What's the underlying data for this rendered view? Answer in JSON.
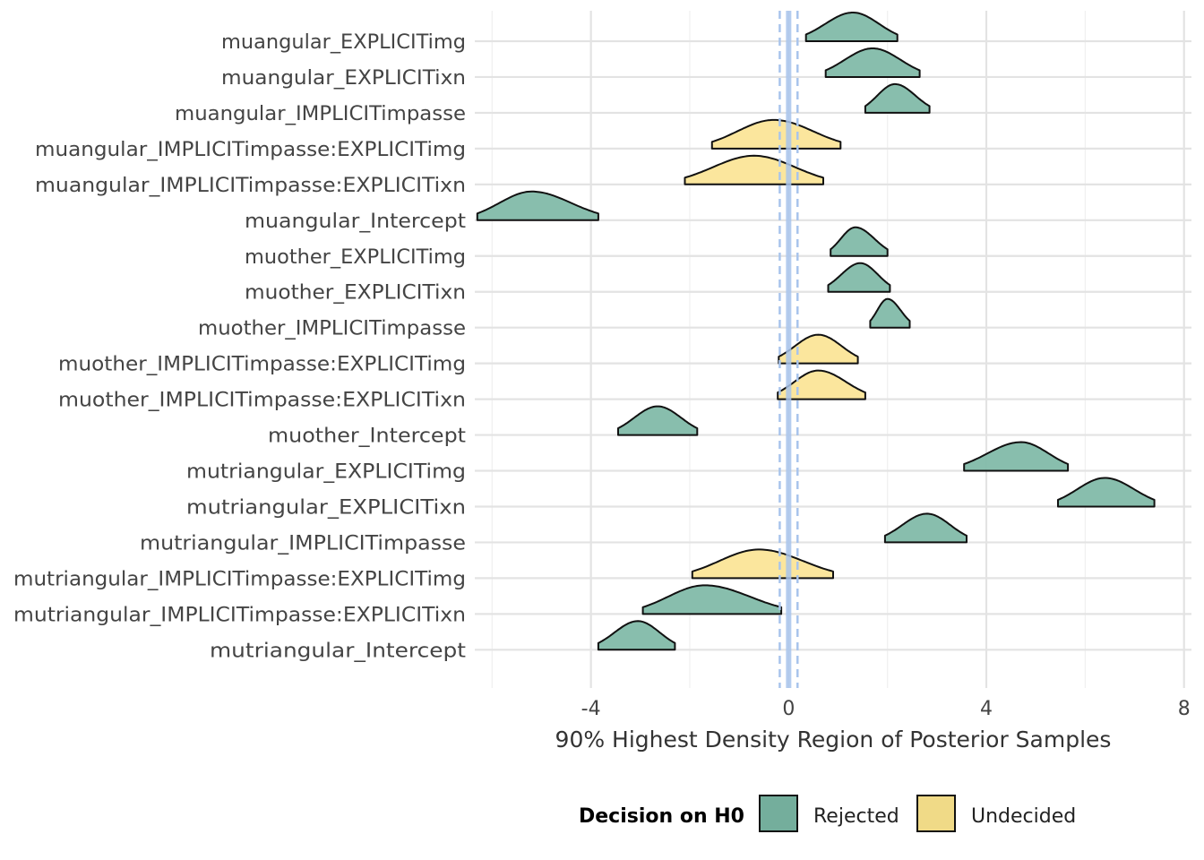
{
  "chart_data": {
    "type": "ridgeline",
    "xlabel": "90% Highest Density Region of Posterior Samples",
    "xlim": [
      -6.35,
      8.15
    ],
    "xticks": [
      -4,
      0,
      4,
      8
    ],
    "xtick_labels": [
      "-4",
      "0",
      "4",
      "8"
    ],
    "grid": true,
    "reference_line": {
      "x": 0,
      "rope": [
        -0.18,
        0.18
      ],
      "color": "#a8c4ec"
    },
    "legend": {
      "title": "Decision on H0",
      "position": "bottom",
      "entries": [
        {
          "label": "Rejected",
          "color": "#74ae9c"
        },
        {
          "label": "Undecided",
          "color": "#f0da87"
        }
      ]
    },
    "fill_colors": {
      "Rejected": "#82bba9",
      "Undecided": "#fbe598"
    },
    "parameters": [
      {
        "name": "muangular_EXPLICITimg",
        "decision": "Rejected",
        "hdi": [
          0.35,
          2.2
        ],
        "mode": 1.3
      },
      {
        "name": "muangular_EXPLICITixn",
        "decision": "Rejected",
        "hdi": [
          0.75,
          2.65
        ],
        "mode": 1.7
      },
      {
        "name": "muangular_IMPLICITimpasse",
        "decision": "Rejected",
        "hdi": [
          1.55,
          2.85
        ],
        "mode": 2.15
      },
      {
        "name": "muangular_IMPLICITimpasse:EXPLICITimg",
        "decision": "Undecided",
        "hdi": [
          -1.55,
          1.05
        ],
        "mode": -0.3
      },
      {
        "name": "muangular_IMPLICITimpasse:EXPLICITixn",
        "decision": "Undecided",
        "hdi": [
          -2.1,
          0.7
        ],
        "mode": -0.7
      },
      {
        "name": "muangular_Intercept",
        "decision": "Rejected",
        "hdi": [
          -6.3,
          -3.85
        ],
        "mode": -5.2
      },
      {
        "name": "muother_EXPLICITimg",
        "decision": "Rejected",
        "hdi": [
          0.85,
          2.0
        ],
        "mode": 1.35
      },
      {
        "name": "muother_EXPLICITixn",
        "decision": "Rejected",
        "hdi": [
          0.8,
          2.05
        ],
        "mode": 1.45
      },
      {
        "name": "muother_IMPLICITimpasse",
        "decision": "Rejected",
        "hdi": [
          1.65,
          2.45
        ],
        "mode": 2.0
      },
      {
        "name": "muother_IMPLICITimpasse:EXPLICITimg",
        "decision": "Undecided",
        "hdi": [
          -0.2,
          1.4
        ],
        "mode": 0.6
      },
      {
        "name": "muother_IMPLICITimpasse:EXPLICITixn",
        "decision": "Undecided",
        "hdi": [
          -0.22,
          1.55
        ],
        "mode": 0.6
      },
      {
        "name": "muother_Intercept",
        "decision": "Rejected",
        "hdi": [
          -3.45,
          -1.85
        ],
        "mode": -2.65
      },
      {
        "name": "mutriangular_EXPLICITimg",
        "decision": "Rejected",
        "hdi": [
          3.55,
          5.65
        ],
        "mode": 4.7
      },
      {
        "name": "mutriangular_EXPLICITixn",
        "decision": "Rejected",
        "hdi": [
          5.45,
          7.4
        ],
        "mode": 6.4
      },
      {
        "name": "mutriangular_IMPLICITimpasse",
        "decision": "Rejected",
        "hdi": [
          1.95,
          3.6
        ],
        "mode": 2.8
      },
      {
        "name": "mutriangular_IMPLICITimpasse:EXPLICITimg",
        "decision": "Undecided",
        "hdi": [
          -1.95,
          0.9
        ],
        "mode": -0.6
      },
      {
        "name": "mutriangular_IMPLICITimpasse:EXPLICITixn",
        "decision": "Rejected",
        "hdi": [
          -2.95,
          -0.15
        ],
        "mode": -1.7
      },
      {
        "name": "mutriangular_Intercept",
        "decision": "Rejected",
        "hdi": [
          -3.85,
          -2.3
        ],
        "mode": -3.05
      }
    ]
  }
}
